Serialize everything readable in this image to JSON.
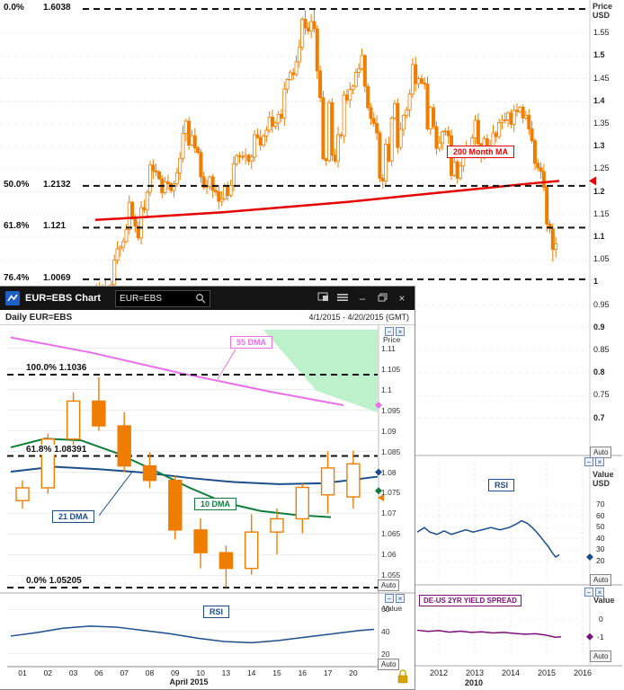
{
  "window": {
    "title": "EUR=EBS Chart",
    "search_value": "EUR=EBS",
    "subtitle": "Daily EUR=EBS",
    "date_range": "4/1/2015 - 4/20/2015 (GMT)",
    "price_axis_title": "Price",
    "value_axis_title": "Value",
    "auto_label": "Auto",
    "month_label": "April 2015",
    "labels": {
      "dma55": "55 DMA",
      "dma21": "21 DMA",
      "dma10": "10 DMA",
      "rsi": "RSI"
    }
  },
  "background": {
    "price_axis_title_1": "Price",
    "price_axis_title_2": "USD",
    "rsi_axis_title_1": "Value",
    "rsi_axis_title_2": "USD",
    "spread_axis_title": "Value",
    "ma_label": "200 Month MA",
    "rsi_label": "RSI",
    "spread_label": "DE-US 2YR YIELD SPREAD",
    "auto_label": "Auto",
    "years": [
      "2012",
      "2013",
      "2014",
      "2015",
      "2016"
    ],
    "decade_label": "2010"
  },
  "colors": {
    "candle": "#ef7d00",
    "ma_red": "#e60000",
    "dma55": "#ea6fea",
    "dma21": "#1c4e8c",
    "dma10": "#0e7d3c",
    "rsi": "#1c4e8c",
    "spread": "#7d0f7d",
    "cloud": "#b5f0c5",
    "fib": "#111111"
  },
  "chart_data": [
    {
      "type": "candlestick",
      "timeframe": "monthly",
      "y_axis_title": "Price USD",
      "y_ticks": [
        1.55,
        1.5,
        1.45,
        1.4,
        1.35,
        1.3,
        1.25,
        1.2,
        1.15,
        1.1,
        1.05,
        1,
        0.95,
        0.9,
        0.85,
        0.8,
        0.75,
        0.7
      ],
      "x_tick_years": [
        2012,
        2013,
        2014,
        2015,
        2016
      ],
      "start_year": 2002.417,
      "fib_levels": [
        {
          "pct": "0.0%",
          "price": 1.6038
        },
        {
          "pct": "50.0%",
          "price": 1.2132
        },
        {
          "pct": "61.8%",
          "price": 1.121
        },
        {
          "pct": "76.4%",
          "price": 1.0069
        }
      ],
      "ma": {
        "label": "200 Month MA",
        "points": [
          [
            2002.45,
            1.138
          ],
          [
            2004,
            1.145
          ],
          [
            2006,
            1.155
          ],
          [
            2008,
            1.168
          ],
          [
            2009.5,
            1.178
          ],
          [
            2011,
            1.19
          ],
          [
            2012.5,
            1.202
          ],
          [
            2013.5,
            1.21
          ],
          [
            2014.5,
            1.218
          ],
          [
            2015.35,
            1.224
          ]
        ]
      },
      "closes": [
        0.937,
        0.99,
        0.978,
        0.982,
        0.988,
        0.985,
        0.995,
        1.049,
        1.074,
        1.078,
        1.09,
        1.117,
        1.177,
        1.143,
        1.124,
        1.098,
        1.165,
        1.16,
        1.199,
        1.259,
        1.246,
        1.244,
        1.229,
        1.198,
        1.222,
        1.218,
        1.203,
        1.218,
        1.242,
        1.274,
        1.329,
        1.356,
        1.303,
        1.324,
        1.297,
        1.287,
        1.233,
        1.21,
        1.212,
        1.233,
        1.203,
        1.2,
        1.179,
        1.184,
        1.214,
        1.192,
        1.214,
        1.262,
        1.28,
        1.278,
        1.277,
        1.281,
        1.268,
        1.277,
        1.326,
        1.32,
        1.303,
        1.323,
        1.336,
        1.365,
        1.345,
        1.352,
        1.371,
        1.363,
        1.427,
        1.448,
        1.463,
        1.459,
        1.487,
        1.519,
        1.581,
        1.562,
        1.555,
        1.576,
        1.56,
        1.467,
        1.408,
        1.273,
        1.269,
        1.397,
        1.281,
        1.268,
        1.326,
        1.324,
        1.414,
        1.403,
        1.426,
        1.433,
        1.464,
        1.472,
        1.501,
        1.433,
        1.386,
        1.362,
        1.351,
        1.33,
        1.23,
        1.224,
        1.305,
        1.268,
        1.363,
        1.395,
        1.298,
        1.338,
        1.369,
        1.381,
        1.416,
        1.481,
        1.439,
        1.45,
        1.44,
        1.438,
        1.339,
        1.386,
        1.344,
        1.296,
        1.308,
        1.333,
        1.334,
        1.324,
        1.236,
        1.266,
        1.23,
        1.257,
        1.286,
        1.296,
        1.298,
        1.319,
        1.358,
        1.306,
        1.282,
        1.317,
        1.3,
        1.301,
        1.33,
        1.322,
        1.353,
        1.358,
        1.359,
        1.374,
        1.349,
        1.38,
        1.377,
        1.387,
        1.363,
        1.369,
        1.339,
        1.313,
        1.263,
        1.253,
        1.245,
        1.21,
        1.129,
        1.119,
        1.073,
        1.085
      ]
    },
    {
      "type": "candlestick",
      "timeframe": "daily",
      "y_ticks": [
        1.11,
        1.105,
        1.1,
        1.095,
        1.09,
        1.085,
        1.08,
        1.075,
        1.07,
        1.065,
        1.06,
        1.055
      ],
      "dates": [
        "01",
        "02",
        "03",
        "06",
        "07",
        "08",
        "09",
        "10",
        "13",
        "14",
        "15",
        "16",
        "17",
        "20"
      ],
      "candles": [
        [
          1.0731,
          1.078,
          1.0712,
          1.0762
        ],
        [
          1.0762,
          1.0893,
          1.0748,
          1.088
        ],
        [
          1.088,
          1.0993,
          1.0863,
          1.0972
        ],
        [
          1.0972,
          1.103,
          1.09,
          1.0912
        ],
        [
          1.0912,
          1.0945,
          1.08,
          1.0815
        ],
        [
          1.0815,
          1.0848,
          1.0762,
          1.078
        ],
        [
          1.078,
          1.0792,
          1.0637,
          1.066
        ],
        [
          1.066,
          1.0688,
          1.0567,
          1.0605
        ],
        [
          1.0605,
          1.0622,
          1.0521,
          1.0567
        ],
        [
          1.0567,
          1.0698,
          1.0552,
          1.0655
        ],
        [
          1.0655,
          1.0712,
          1.0601,
          1.0687
        ],
        [
          1.0687,
          1.0772,
          1.0652,
          1.0763
        ],
        [
          1.0745,
          1.085,
          1.07,
          1.081
        ],
        [
          1.074,
          1.0852,
          1.0712,
          1.082
        ]
      ],
      "fib_levels": [
        {
          "label": "100.0%",
          "price": 1.1036
        },
        {
          "label": "61.8%",
          "price": 1.08391
        },
        {
          "label": "0.0%",
          "price": 1.05205
        }
      ],
      "overlays": {
        "dma55": [
          [
            12,
            1.1126
          ],
          [
            100,
            1.109
          ],
          [
            200,
            1.104
          ],
          [
            300,
            1.0995
          ],
          [
            382,
            1.0962
          ]
        ],
        "dma21": [
          [
            12,
            1.0801
          ],
          [
            60,
            1.0813
          ],
          [
            110,
            1.0807
          ],
          [
            160,
            1.0799
          ],
          [
            210,
            1.0786
          ],
          [
            260,
            1.0776
          ],
          [
            310,
            1.0771
          ],
          [
            360,
            1.0773
          ],
          [
            420,
            1.0789
          ]
        ],
        "dma10": [
          [
            12,
            1.086
          ],
          [
            50,
            1.0881
          ],
          [
            90,
            1.0877
          ],
          [
            130,
            1.0846
          ],
          [
            170,
            1.0806
          ],
          [
            210,
            1.0763
          ],
          [
            250,
            1.0726
          ],
          [
            290,
            1.0706
          ],
          [
            330,
            1.0696
          ],
          [
            368,
            1.0691
          ]
        ],
        "cloud": [
          [
            293,
            5
          ],
          [
            420,
            5
          ],
          [
            420,
            97
          ],
          [
            352,
            73
          ]
        ]
      }
    },
    {
      "type": "line",
      "label": "RSI",
      "timeframe": "daily",
      "y_ticks": [
        60,
        40,
        20
      ],
      "range": [
        10,
        70
      ],
      "points": [
        [
          12,
          36
        ],
        [
          40,
          39
        ],
        [
          70,
          43
        ],
        [
          100,
          45
        ],
        [
          130,
          44
        ],
        [
          160,
          41
        ],
        [
          190,
          38
        ],
        [
          220,
          34
        ],
        [
          250,
          31
        ],
        [
          280,
          30
        ],
        [
          310,
          32
        ],
        [
          340,
          35
        ],
        [
          370,
          38
        ],
        [
          400,
          41
        ],
        [
          416,
          42
        ]
      ]
    },
    {
      "type": "line",
      "label": "RSI",
      "timeframe": "monthly",
      "y_ticks": [
        70,
        60,
        50,
        40,
        30,
        20
      ],
      "points": [
        [
          2011.4,
          46
        ],
        [
          2011.6,
          50
        ],
        [
          2011.75,
          46
        ],
        [
          2011.95,
          44
        ],
        [
          2012.15,
          47
        ],
        [
          2012.35,
          44
        ],
        [
          2012.55,
          46
        ],
        [
          2012.75,
          48
        ],
        [
          2012.95,
          46
        ],
        [
          2013.2,
          48
        ],
        [
          2013.45,
          50
        ],
        [
          2013.7,
          48
        ],
        [
          2013.95,
          50
        ],
        [
          2014.15,
          53
        ],
        [
          2014.3,
          56
        ],
        [
          2014.45,
          54
        ],
        [
          2014.6,
          50
        ],
        [
          2014.75,
          45
        ],
        [
          2014.9,
          39
        ],
        [
          2015.05,
          33
        ],
        [
          2015.15,
          28
        ],
        [
          2015.25,
          24
        ],
        [
          2015.35,
          26
        ]
      ]
    },
    {
      "type": "line",
      "label": "DE-US 2YR YIELD SPREAD",
      "y_ticks": [
        0,
        -1
      ],
      "points": [
        [
          2011.4,
          -0.52
        ],
        [
          2011.7,
          -0.58
        ],
        [
          2012.0,
          -0.54
        ],
        [
          2012.3,
          -0.62
        ],
        [
          2012.6,
          -0.57
        ],
        [
          2012.9,
          -0.63
        ],
        [
          2013.2,
          -0.6
        ],
        [
          2013.5,
          -0.66
        ],
        [
          2013.8,
          -0.63
        ],
        [
          2014.1,
          -0.68
        ],
        [
          2014.4,
          -0.72
        ],
        [
          2014.7,
          -0.7
        ],
        [
          2014.95,
          -0.76
        ],
        [
          2015.1,
          -0.82
        ],
        [
          2015.25,
          -0.88
        ],
        [
          2015.4,
          -0.85
        ]
      ]
    }
  ]
}
